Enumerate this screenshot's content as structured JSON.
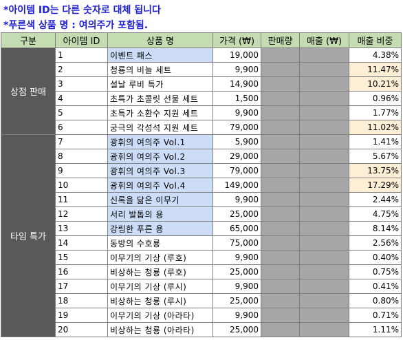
{
  "notes": {
    "line1": "*아이템 ID는 다른 숫자로 대체 됩니다",
    "line2": "*푸른색 상품 명 : 여의주가 포함됨."
  },
  "headers": {
    "category": "구분",
    "item_id": "아이템 ID",
    "product_name": "상품 명",
    "price": "가격 (₩)",
    "sales_volume": "판매량",
    "revenue": "매출 (₩)",
    "revenue_share": "매출 비중"
  },
  "categories": {
    "shop_sale": "상점 판매",
    "time_special": "타임 특가"
  },
  "colors": {
    "header_bg": "#c5dcb3",
    "category_bg": "#595959",
    "hidden_column_bg": "#a6a6a6",
    "contains_yeouiju_bg": "#cdddf7",
    "high_share_bg": "#fdefd6",
    "note_text": "#1f1fd6"
  },
  "rows": [
    {
      "id": "1",
      "name": "이벤트 패스",
      "price": "19,000",
      "share": "4.38%",
      "blue": true,
      "high": false
    },
    {
      "id": "2",
      "name": "청룡의 비늘 세트",
      "price": "9,900",
      "share": "11.47%",
      "blue": false,
      "high": true
    },
    {
      "id": "3",
      "name": "설날 루비 특가",
      "price": "14,900",
      "share": "10.21%",
      "blue": false,
      "high": true
    },
    {
      "id": "4",
      "name": "초특가 초콜릿 선물 세트",
      "price": "1,500",
      "share": "0.96%",
      "blue": false,
      "high": false
    },
    {
      "id": "5",
      "name": "초특가 소환수 지원 세트",
      "price": "9,900",
      "share": "1.77%",
      "blue": false,
      "high": false
    },
    {
      "id": "6",
      "name": "궁극의 각성석 지원 세트",
      "price": "79,000",
      "share": "11.02%",
      "blue": false,
      "high": true
    },
    {
      "id": "7",
      "name": "광휘의 여의주 Vol.1",
      "price": "5,900",
      "share": "1.41%",
      "blue": true,
      "high": false
    },
    {
      "id": "8",
      "name": "광휘의 여의주 Vol.2",
      "price": "29,000",
      "share": "5.67%",
      "blue": true,
      "high": false
    },
    {
      "id": "9",
      "name": "광휘의 여의주 Vol.3",
      "price": "79,000",
      "share": "13.75%",
      "blue": true,
      "high": true
    },
    {
      "id": "10",
      "name": "광휘의 여의주 Vol.4",
      "price": "149,000",
      "share": "17.29%",
      "blue": true,
      "high": true
    },
    {
      "id": "11",
      "name": "신록을 닮은 이무기",
      "price": "9,900",
      "share": "2.44%",
      "blue": true,
      "high": false
    },
    {
      "id": "12",
      "name": "서리 발톱의 용",
      "price": "25,000",
      "share": "4.75%",
      "blue": true,
      "high": false
    },
    {
      "id": "13",
      "name": "강림한 푸른 용",
      "price": "65,000",
      "share": "8.14%",
      "blue": true,
      "high": false
    },
    {
      "id": "14",
      "name": "동방의 수호룡",
      "price": "75,000",
      "share": "2.56%",
      "blue": false,
      "high": false
    },
    {
      "id": "15",
      "name": "이무기의 기상 (루호)",
      "price": "9,900",
      "share": "0.40%",
      "blue": false,
      "high": false
    },
    {
      "id": "16",
      "name": "비상하는 청룡 (루호)",
      "price": "25,000",
      "share": "0.75%",
      "blue": false,
      "high": false
    },
    {
      "id": "17",
      "name": "이무기의 기상 (루시)",
      "price": "9,900",
      "share": "0.41%",
      "blue": false,
      "high": false
    },
    {
      "id": "18",
      "name": "비상하는 청룡 (루시)",
      "price": "25,000",
      "share": "0.80%",
      "blue": false,
      "high": false
    },
    {
      "id": "19",
      "name": "이무기의 기상 (아라타)",
      "price": "9,900",
      "share": "0.71%",
      "blue": false,
      "high": false
    },
    {
      "id": "20",
      "name": "비상하는 청룡 (아라타)",
      "price": "25,000",
      "share": "1.11%",
      "blue": false,
      "high": false
    }
  ]
}
